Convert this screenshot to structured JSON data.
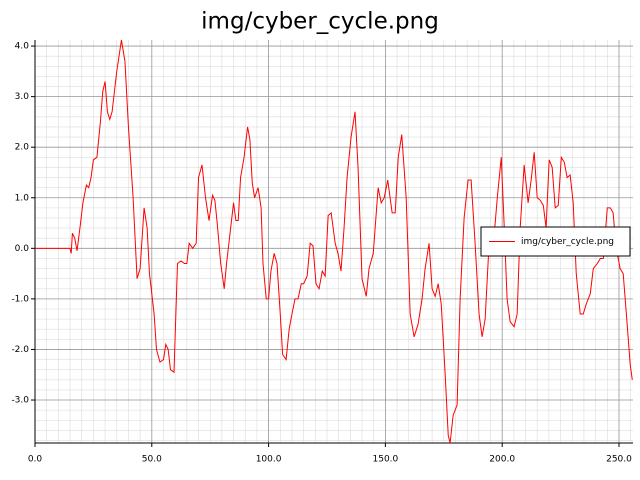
{
  "chart_data": {
    "type": "line",
    "title": "img/cyber_cycle.png",
    "xlim": [
      0,
      256
    ],
    "ylim": [
      -3.85,
      4.12
    ],
    "xticks": [
      {
        "value": 0,
        "label": "0.0"
      },
      {
        "value": 50,
        "label": "50.0"
      },
      {
        "value": 100,
        "label": "100.0"
      },
      {
        "value": 150,
        "label": "150.0"
      },
      {
        "value": 200,
        "label": "200.0"
      },
      {
        "value": 250,
        "label": "250.0"
      }
    ],
    "yticks": [
      {
        "value": -3,
        "label": "-3.0"
      },
      {
        "value": -2,
        "label": "-2.0"
      },
      {
        "value": -1,
        "label": "-1.0"
      },
      {
        "value": 0,
        "label": "0.0"
      },
      {
        "value": 1,
        "label": "1.0"
      },
      {
        "value": 2,
        "label": "2.0"
      },
      {
        "value": 3,
        "label": "3.0"
      },
      {
        "value": 4,
        "label": "4.0"
      }
    ],
    "grid": true,
    "legend": "right",
    "x": [
      0,
      15,
      15.5,
      16,
      17,
      18,
      19.5,
      20.5,
      22,
      23,
      24,
      25,
      26.5,
      28,
      29,
      30,
      31,
      32,
      33,
      35,
      37,
      38.5,
      40,
      42,
      43.7,
      45,
      46.7,
      48,
      49,
      51,
      52,
      53.5,
      55,
      56,
      57,
      58,
      59.5,
      61,
      62.5,
      64,
      65,
      66,
      67.5,
      69,
      70,
      71.5,
      73,
      74.5,
      76,
      77,
      78,
      79.5,
      81,
      82,
      83.5,
      85,
      86,
      87,
      88,
      89.5,
      91,
      92,
      93,
      94,
      95.5,
      96.8,
      97.6,
      99,
      100,
      101,
      102.4,
      103.6,
      105,
      106,
      107.5,
      108.8,
      110,
      111.3,
      112.6,
      114,
      115,
      116.5,
      117.8,
      119,
      120.3,
      121.6,
      123,
      124.2,
      125.5,
      126.8,
      128.5,
      129.7,
      131,
      132.3,
      133.6,
      135.3,
      137,
      138.3,
      140,
      141.8,
      143,
      144.8,
      146.9,
      148.2,
      149.5,
      151,
      152.9,
      154.2,
      155.5,
      157,
      158.9,
      160.6,
      162.3,
      164,
      165.7,
      167,
      168.7,
      170,
      171.3,
      172.6,
      173.9,
      175.6,
      176.9,
      177.7,
      179,
      180.7,
      182,
      183.7,
      185.4,
      186.7,
      188.4,
      190.1,
      191.4,
      192.7,
      194.4,
      196.1,
      197.9,
      199.6,
      200.9,
      202.1,
      203.4,
      205.1,
      206.4,
      207.7,
      209.4,
      211.1,
      212.4,
      213.7,
      215,
      216.3,
      217.6,
      218.8,
      220.1,
      221.4,
      222.7,
      224,
      225.3,
      226.6,
      227.8,
      229.1,
      230.4,
      231.7,
      233.4,
      234.7,
      236,
      237.7,
      239,
      240.7,
      242,
      243.3,
      245,
      246.3,
      247.5,
      248.8,
      250.5,
      251.8,
      253.5,
      254.8,
      255.7
    ],
    "series": [
      {
        "name": "img/cyber_cycle.png",
        "color": "#ff0000",
        "values": [
          0,
          0,
          -0.1,
          0.3,
          0.2,
          -0.05,
          0.5,
          0.9,
          1.25,
          1.2,
          1.4,
          1.75,
          1.8,
          2.5,
          3.1,
          3.3,
          2.7,
          2.55,
          2.7,
          3.5,
          4.12,
          3.7,
          2.4,
          1.0,
          -0.6,
          -0.4,
          0.8,
          0.4,
          -0.5,
          -1.3,
          -2.0,
          -2.25,
          -2.2,
          -1.9,
          -2.0,
          -2.4,
          -2.45,
          -0.3,
          -0.25,
          -0.3,
          -0.3,
          0.1,
          0.0,
          0.1,
          1.4,
          1.65,
          1.0,
          0.55,
          1.05,
          0.95,
          0.5,
          -0.3,
          -0.8,
          -0.3,
          0.3,
          0.9,
          0.55,
          0.55,
          1.4,
          1.8,
          2.4,
          2.15,
          1.3,
          1.0,
          1.2,
          0.8,
          -0.3,
          -1.0,
          -1.0,
          -0.45,
          -0.1,
          -0.3,
          -1.3,
          -2.1,
          -2.2,
          -1.6,
          -1.3,
          -1.0,
          -1.0,
          -0.7,
          -0.7,
          -0.55,
          0.1,
          0.05,
          -0.7,
          -0.8,
          -0.45,
          -0.55,
          0.65,
          0.7,
          0.1,
          -0.1,
          -0.45,
          0.4,
          1.4,
          2.2,
          2.7,
          1.6,
          -0.6,
          -0.95,
          -0.4,
          -0.1,
          1.2,
          0.9,
          1.0,
          1.35,
          0.7,
          0.7,
          1.8,
          2.25,
          1.0,
          -1.3,
          -1.75,
          -1.5,
          -1.0,
          -0.4,
          0.1,
          -0.8,
          -0.95,
          -0.7,
          -1.1,
          -2.5,
          -3.7,
          -3.85,
          -3.3,
          -3.1,
          -1.0,
          0.6,
          1.35,
          1.35,
          0.1,
          -1.3,
          -1.75,
          -1.4,
          0.1,
          0.0,
          1.0,
          1.8,
          0.4,
          -1.0,
          -1.45,
          -1.55,
          -1.3,
          0.4,
          1.65,
          0.9,
          1.35,
          1.9,
          1.0,
          0.95,
          0.85,
          0.4,
          1.75,
          1.6,
          0.8,
          0.85,
          1.8,
          1.7,
          1.4,
          1.45,
          0.9,
          -0.5,
          -1.3,
          -1.3,
          -1.1,
          -0.9,
          -0.4,
          -0.3,
          -0.2,
          -0.2,
          0.8,
          0.8,
          0.7,
          0.0,
          -0.4,
          -0.5,
          -1.5,
          -2.3,
          -2.6
        ]
      }
    ]
  }
}
